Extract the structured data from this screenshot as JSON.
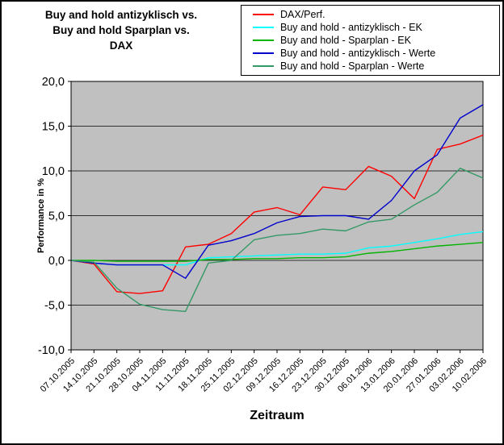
{
  "title": {
    "lines": [
      "Buy and hold antizyklisch vs.",
      "Buy and hold Sparplan vs.",
      "DAX"
    ]
  },
  "chart_data": {
    "type": "line",
    "title": "Buy and hold antizyklisch vs. Buy and hold Sparplan vs. DAX",
    "xlabel": "Zeitraum",
    "ylabel": "Performance in %",
    "ylim": [
      -10,
      20
    ],
    "ytick_step": 5,
    "ytick_labels": [
      "20,0",
      "15,0",
      "10,0",
      "5,0",
      "0,0",
      "-5,0",
      "-10,0"
    ],
    "grid": true,
    "legend_position": "top-right",
    "plot_bg": "#c0c0c0",
    "categories": [
      "07.10.2005",
      "14.10.2005",
      "21.10.2005",
      "28.10.2005",
      "04.11.2005",
      "11.11.2005",
      "18.11.2005",
      "25.11.2005",
      "02.12.2005",
      "09.12.2005",
      "16.12.2005",
      "23.12.2005",
      "30.12.2005",
      "06.01.2006",
      "13.01.2006",
      "20.01.2006",
      "27.01.2006",
      "03.02.2006",
      "10.02.2006"
    ],
    "series": [
      {
        "name": "DAX/Perf.",
        "color": "#ff0000",
        "values": [
          0.0,
          -0.4,
          -3.5,
          -3.7,
          -3.4,
          1.5,
          1.8,
          3.0,
          5.4,
          5.9,
          5.1,
          8.2,
          7.9,
          10.5,
          9.4,
          6.9,
          12.4,
          13.0,
          14.0
        ]
      },
      {
        "name": "Buy and hold - antizyklisch - EK",
        "color": "#00ffff",
        "values": [
          0.0,
          -0.3,
          -0.5,
          -0.5,
          -0.5,
          -0.5,
          0.3,
          0.4,
          0.5,
          0.6,
          0.7,
          0.7,
          0.8,
          1.4,
          1.6,
          2.0,
          2.4,
          2.9,
          3.2
        ]
      },
      {
        "name": "Buy and hold - Sparplan - EK",
        "color": "#00b400",
        "values": [
          0.0,
          0.0,
          -0.1,
          -0.1,
          -0.1,
          -0.1,
          0.1,
          0.1,
          0.2,
          0.2,
          0.3,
          0.3,
          0.4,
          0.8,
          1.0,
          1.3,
          1.6,
          1.8,
          2.0
        ]
      },
      {
        "name": "Buy and hold - antizyklisch - Werte",
        "color": "#0000cc",
        "values": [
          0.0,
          -0.3,
          -0.5,
          -0.5,
          -0.5,
          -2.0,
          1.7,
          2.2,
          3.0,
          4.2,
          4.9,
          5.0,
          5.0,
          4.6,
          6.7,
          10.0,
          11.8,
          15.9,
          17.4
        ]
      },
      {
        "name": "Buy and hold - Sparplan - Werte",
        "color": "#339966",
        "values": [
          0.0,
          -0.2,
          -3.1,
          -4.9,
          -5.5,
          -5.7,
          -0.3,
          0.0,
          2.3,
          2.8,
          3.0,
          3.5,
          3.3,
          4.3,
          4.6,
          6.2,
          7.6,
          10.3,
          9.2
        ]
      }
    ]
  }
}
